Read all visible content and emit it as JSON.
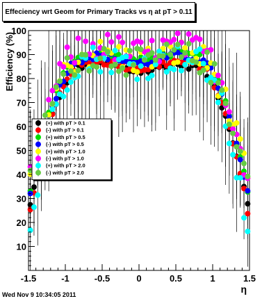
{
  "title": "Effeciency wrt Geom for Primary Tracks vs    η at pT > 0.11",
  "footer": "Wed Nov  9 10:34:05 2011",
  "chart_data": {
    "type": "scatter",
    "title": "Effeciency wrt Geom for Primary Tracks vs    η at pT > 0.11",
    "xlabel": "η",
    "ylabel": "Efficiency (%)",
    "xlim": [
      -1.5,
      1.5
    ],
    "ylim": [
      0,
      100
    ],
    "xticks": [
      -1.5,
      -1,
      -0.5,
      0,
      0.5,
      1,
      1.5
    ],
    "xtick_labels": [
      "-1.5",
      "-1",
      "-0.5",
      "0",
      "0.5",
      "1",
      "1.5"
    ],
    "yticks": [
      10,
      20,
      30,
      40,
      50,
      60,
      70,
      80,
      90,
      100
    ],
    "ytick_labels": [
      "10",
      "20",
      "30",
      "40",
      "50",
      "60",
      "70",
      "80",
      "90",
      "100"
    ],
    "grid": false,
    "legend_position": "center-left",
    "series": [
      {
        "name": "(+) with pT > 0.1",
        "color": "#000000",
        "efficiency_approx": 84.5,
        "edge_efficiency_approx": 23
      },
      {
        "name": "(-) with pT > 0.1",
        "color": "#ff0000",
        "efficiency_approx": 85.5,
        "edge_efficiency_approx": 21
      },
      {
        "name": "(+) with pT > 0.5",
        "color": "#00dd00",
        "efficiency_approx": 89,
        "edge_efficiency_approx": 30
      },
      {
        "name": "(-) with pT > 0.5",
        "color": "#0000ff",
        "efficiency_approx": 88,
        "edge_efficiency_approx": 28
      },
      {
        "name": "(+) with pT > 1.0",
        "color": "#ffff00",
        "efficiency_approx": 89,
        "edge_efficiency_approx": 33
      },
      {
        "name": "(-) with pT > 1.0",
        "color": "#ff00ff",
        "efficiency_approx": 92,
        "edge_efficiency_approx": 35
      },
      {
        "name": "(+) with pT > 2.0",
        "color": "#00ffff",
        "efficiency_approx": 87,
        "edge_efficiency_approx": 12
      },
      {
        "name": "(-) with pT > 2.0",
        "color": "#66cc44",
        "efficiency_approx": 88,
        "edge_efficiency_approx": 33
      }
    ]
  }
}
